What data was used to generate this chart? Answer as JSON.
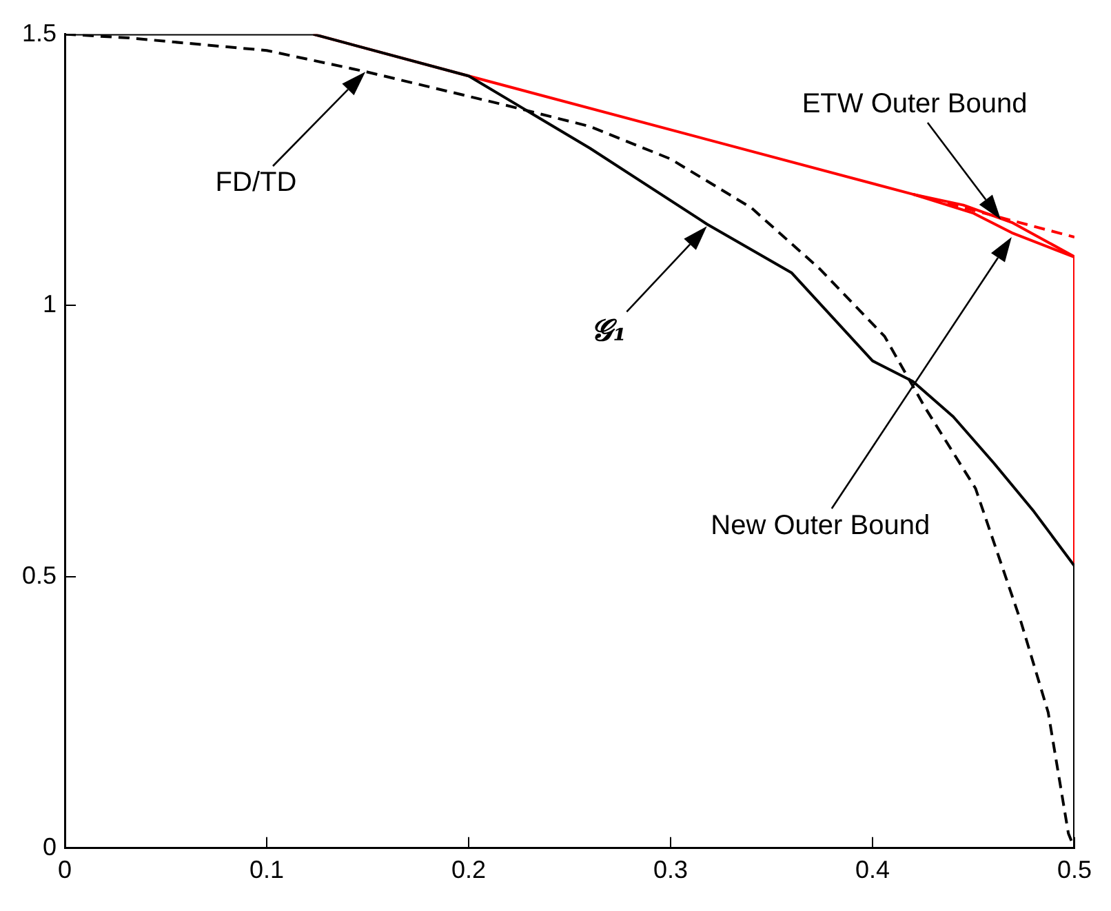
{
  "chart_data": {
    "type": "line",
    "marker": "none",
    "grid": false,
    "xlim": [
      0,
      0.5
    ],
    "xticks": [
      0,
      0.1,
      0.2,
      0.3,
      0.4,
      0.5
    ],
    "ylim": [
      0,
      1.5
    ],
    "yticks": [
      0,
      0.5,
      1,
      1.5
    ],
    "series": [
      {
        "color": "#ff0000",
        "line_style": "solid",
        "x": [
          0.123,
          0.2,
          0.42,
          0.45,
          0.469,
          0.5,
          0.5
        ],
        "values": [
          1.5,
          1.423,
          1.205,
          1.17,
          1.134,
          1.089,
          0.52
        ]
      },
      {
        "color": "#ff0000",
        "line_style": "solid",
        "x": [
          0.42,
          0.445,
          0.469,
          0.5
        ],
        "values": [
          1.205,
          1.185,
          1.153,
          1.09
        ]
      },
      {
        "color": "#ff0000",
        "line_style": "dashed",
        "x": [
          0.42,
          0.5
        ],
        "values": [
          1.205,
          1.126
        ]
      },
      {
        "color": "#000000",
        "line_style": "solid",
        "x": [
          0,
          0.123,
          0.2,
          0.26,
          0.318,
          0.36,
          0.4,
          0.42,
          0.44,
          0.46,
          0.48,
          0.5,
          0.5
        ],
        "values": [
          1.5,
          1.5,
          1.423,
          1.29,
          1.15,
          1.06,
          0.898,
          0.86,
          0.795,
          0.71,
          0.62,
          0.52,
          0
        ]
      },
      {
        "color": "#000000",
        "line_style": "dashed",
        "x": [
          0,
          0.032,
          0.1,
          0.149,
          0.2185,
          0.26,
          0.3,
          0.34,
          0.374,
          0.406,
          0.426,
          0.451,
          0.4736,
          0.487,
          0.497,
          0.5
        ],
        "values": [
          1.5,
          1.493,
          1.47,
          1.431,
          1.369,
          1.33,
          1.27,
          1.18,
          1.067,
          0.943,
          0.812,
          0.663,
          0.416,
          0.25,
          0.027,
          0
        ]
      }
    ],
    "annotations": [
      "FD/TD",
      "𝒢₁",
      "ETW Outer Bound",
      "New Outer Bound"
    ]
  }
}
